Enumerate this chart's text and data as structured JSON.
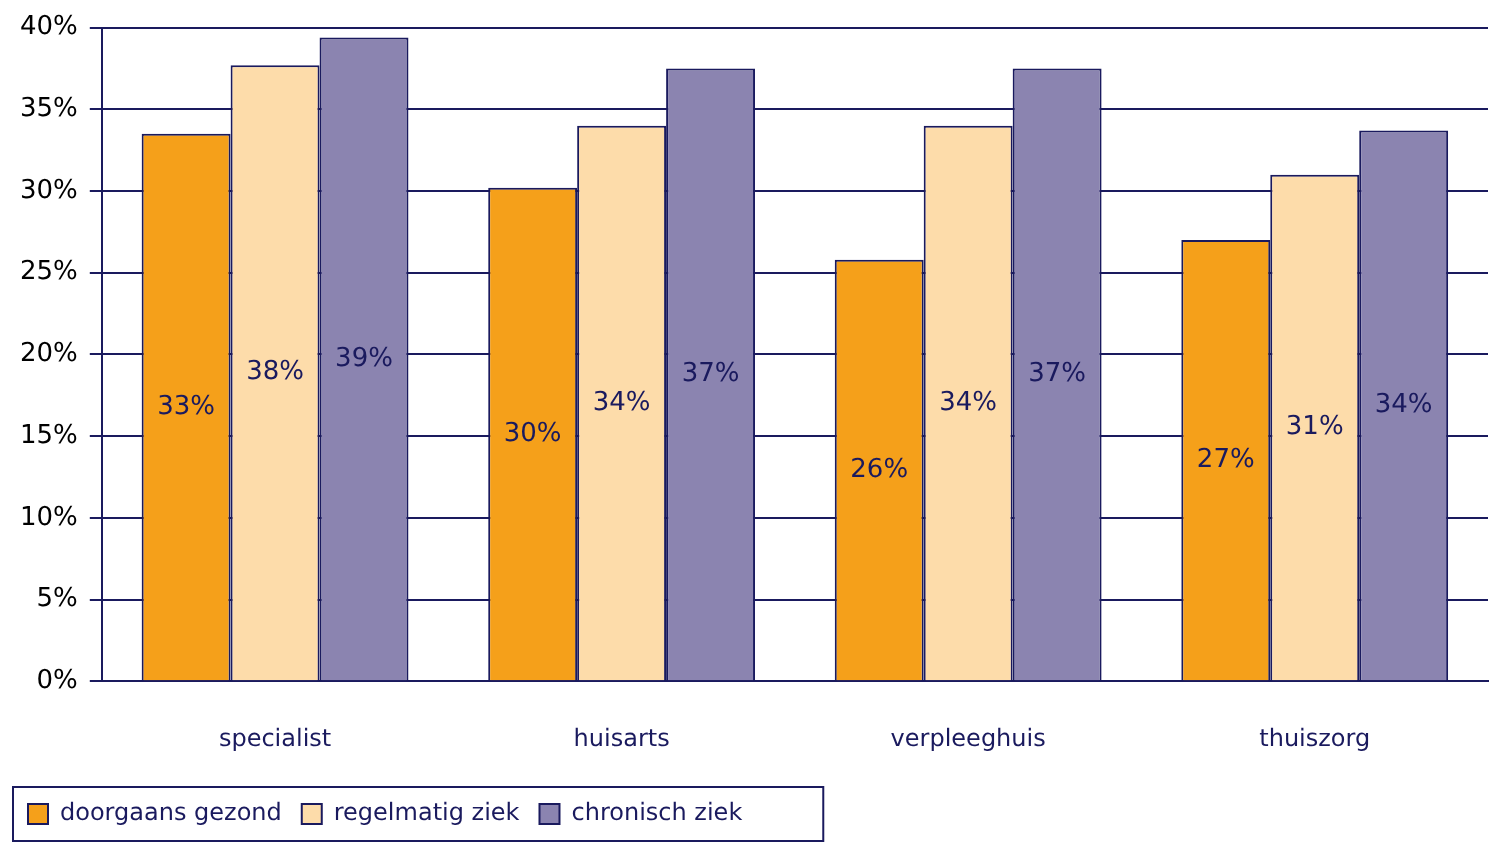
{
  "chart_data": {
    "type": "bar",
    "categories": [
      "specialist",
      "huisarts",
      "verpleeghuis",
      "thuiszorg"
    ],
    "series": [
      {
        "name": "doorgaans gezond",
        "color": "#f5a01a",
        "values": [
          33.5,
          30.2,
          25.8,
          27
        ],
        "value_labels": [
          "33%",
          "30%",
          "26%",
          "27%"
        ]
      },
      {
        "name": "regelmatig ziek",
        "color": "#fddcaa",
        "values": [
          37.7,
          34,
          34,
          31
        ],
        "value_labels": [
          "38%",
          "34%",
          "34%",
          "31%"
        ]
      },
      {
        "name": "chronisch ziek",
        "color": "#8b84b0",
        "values": [
          39.4,
          37.5,
          37.5,
          33.7
        ],
        "value_labels": [
          "39%",
          "37%",
          "37%",
          "34%"
        ]
      }
    ],
    "ylim": [
      0,
      40
    ],
    "yticks": [
      {
        "value": 0,
        "label": "0%"
      },
      {
        "value": 5,
        "label": "5%"
      },
      {
        "value": 10,
        "label": "10%"
      },
      {
        "value": 15,
        "label": "15%"
      },
      {
        "value": 20,
        "label": "20%"
      },
      {
        "value": 25,
        "label": "25%"
      },
      {
        "value": 30,
        "label": "30%"
      },
      {
        "value": 35,
        "label": "35%"
      },
      {
        "value": 40,
        "label": "40%"
      }
    ],
    "grid": "y",
    "legend": "bottom"
  }
}
